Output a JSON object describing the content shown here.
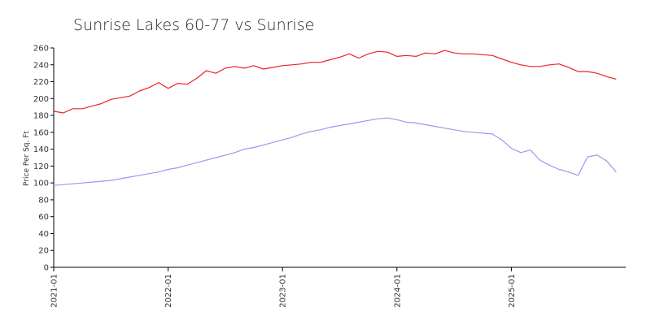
{
  "chart_data": {
    "type": "line",
    "title": "Sunrise Lakes 60-77 vs Sunrise",
    "xlabel": "",
    "ylabel": "Price Per Sq. Ft",
    "ylim": [
      0,
      260
    ],
    "yticks": [
      "0",
      "20",
      "40",
      "60",
      "80",
      "100",
      "120",
      "140",
      "160",
      "180",
      "200",
      "220",
      "240",
      "260"
    ],
    "xlim": [
      "2021-01",
      "2025-10"
    ],
    "xticks": [
      "2021-01",
      "2022-01",
      "2023-01",
      "2024-01",
      "2025-01"
    ],
    "grid": false,
    "legend": "none",
    "series": [
      {
        "color": "#ee2222",
        "points": [
          [
            "2021-01",
            185
          ],
          [
            "2021-02",
            183
          ],
          [
            "2021-03",
            188
          ],
          [
            "2021-04",
            188
          ],
          [
            "2021-05",
            191
          ],
          [
            "2021-06",
            194
          ],
          [
            "2021-07",
            199
          ],
          [
            "2021-08",
            201
          ],
          [
            "2021-09",
            203
          ],
          [
            "2021-10",
            209
          ],
          [
            "2021-11",
            213
          ],
          [
            "2021-12",
            219
          ],
          [
            "2022-01",
            212
          ],
          [
            "2022-02",
            218
          ],
          [
            "2022-03",
            217
          ],
          [
            "2022-04",
            224
          ],
          [
            "2022-05",
            233
          ],
          [
            "2022-06",
            230
          ],
          [
            "2022-07",
            236
          ],
          [
            "2022-08",
            238
          ],
          [
            "2022-09",
            236
          ],
          [
            "2022-10",
            239
          ],
          [
            "2022-11",
            235
          ],
          [
            "2022-12",
            237
          ],
          [
            "2023-01",
            239
          ],
          [
            "2023-02",
            240
          ],
          [
            "2023-03",
            241
          ],
          [
            "2023-04",
            243
          ],
          [
            "2023-05",
            243
          ],
          [
            "2023-06",
            246
          ],
          [
            "2023-07",
            249
          ],
          [
            "2023-08",
            253
          ],
          [
            "2023-09",
            248
          ],
          [
            "2023-10",
            253
          ],
          [
            "2023-11",
            256
          ],
          [
            "2023-12",
            255
          ],
          [
            "2024-01",
            250
          ],
          [
            "2024-02",
            251
          ],
          [
            "2024-03",
            250
          ],
          [
            "2024-04",
            254
          ],
          [
            "2024-05",
            253
          ],
          [
            "2024-06",
            257
          ],
          [
            "2024-07",
            254
          ],
          [
            "2024-08",
            253
          ],
          [
            "2024-09",
            253
          ],
          [
            "2024-10",
            252
          ],
          [
            "2024-11",
            251
          ],
          [
            "2024-12",
            247
          ],
          [
            "2025-01",
            243
          ],
          [
            "2025-02",
            240
          ],
          [
            "2025-03",
            238
          ],
          [
            "2025-04",
            238
          ],
          [
            "2025-05",
            240
          ],
          [
            "2025-06",
            241
          ],
          [
            "2025-07",
            237
          ],
          [
            "2025-08",
            232
          ],
          [
            "2025-09",
            232
          ],
          [
            "2025-10",
            230
          ],
          [
            "2025-11",
            226
          ],
          [
            "2025-12",
            223
          ]
        ]
      },
      {
        "color": "#9999ee",
        "points": [
          [
            "2021-01",
            97
          ],
          [
            "2021-02",
            98
          ],
          [
            "2021-03",
            99
          ],
          [
            "2021-04",
            100
          ],
          [
            "2021-05",
            101
          ],
          [
            "2021-06",
            102
          ],
          [
            "2021-07",
            103
          ],
          [
            "2021-08",
            105
          ],
          [
            "2021-09",
            107
          ],
          [
            "2021-10",
            109
          ],
          [
            "2021-11",
            111
          ],
          [
            "2021-12",
            113
          ],
          [
            "2022-01",
            116
          ],
          [
            "2022-02",
            118
          ],
          [
            "2022-03",
            121
          ],
          [
            "2022-04",
            124
          ],
          [
            "2022-05",
            127
          ],
          [
            "2022-06",
            130
          ],
          [
            "2022-07",
            133
          ],
          [
            "2022-08",
            136
          ],
          [
            "2022-09",
            140
          ],
          [
            "2022-10",
            142
          ],
          [
            "2022-11",
            145
          ],
          [
            "2022-12",
            148
          ],
          [
            "2023-01",
            151
          ],
          [
            "2023-02",
            154
          ],
          [
            "2023-03",
            158
          ],
          [
            "2023-04",
            161
          ],
          [
            "2023-05",
            163
          ],
          [
            "2023-06",
            166
          ],
          [
            "2023-07",
            168
          ],
          [
            "2023-08",
            170
          ],
          [
            "2023-09",
            172
          ],
          [
            "2023-10",
            174
          ],
          [
            "2023-11",
            176
          ],
          [
            "2023-12",
            177
          ],
          [
            "2024-01",
            175
          ],
          [
            "2024-02",
            172
          ],
          [
            "2024-03",
            171
          ],
          [
            "2024-04",
            169
          ],
          [
            "2024-05",
            167
          ],
          [
            "2024-06",
            165
          ],
          [
            "2024-07",
            163
          ],
          [
            "2024-08",
            161
          ],
          [
            "2024-09",
            160
          ],
          [
            "2024-10",
            159
          ],
          [
            "2024-11",
            158
          ],
          [
            "2024-12",
            151
          ],
          [
            "2025-01",
            141
          ],
          [
            "2025-02",
            136
          ],
          [
            "2025-03",
            139
          ],
          [
            "2025-04",
            127
          ],
          [
            "2025-05",
            121
          ],
          [
            "2025-06",
            116
          ],
          [
            "2025-07",
            113
          ],
          [
            "2025-08",
            109
          ],
          [
            "2025-09",
            131
          ],
          [
            "2025-10",
            133
          ],
          [
            "2025-11",
            126
          ],
          [
            "2025-12",
            113
          ]
        ]
      }
    ]
  }
}
